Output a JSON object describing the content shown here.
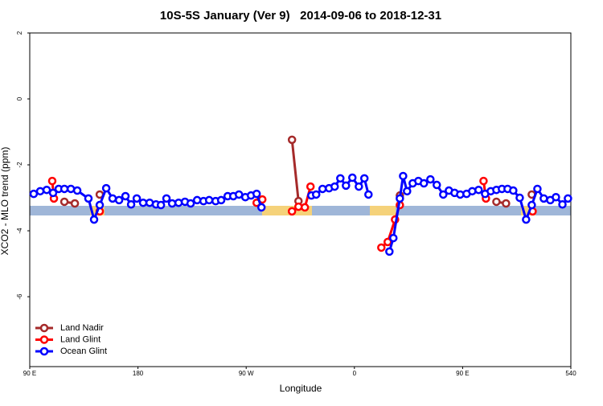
{
  "chart_data": {
    "type": "line",
    "title": "10S-5S January (Ver 9)   2014-09-06 to 2018-12-31",
    "x_label": "Longitude",
    "y_label": "XCO2 - MLO trend (ppm)",
    "xlim": [
      90,
      540
    ],
    "ylim": [
      -8.12,
      2
    ],
    "xticks": [
      {
        "value": 90,
        "label": "90 E"
      },
      180,
      {
        "value": 270,
        "label": "90 W"
      },
      {
        "value": 360,
        "label": "0"
      },
      {
        "value": 450,
        "label": "90 E"
      },
      540
    ],
    "yticks": [
      2,
      0,
      -2,
      -4,
      -6
    ],
    "legend": "bottom-left",
    "series": [
      {
        "name": "Land Nadir",
        "color": "#a52a2a",
        "x": [
          118.8,
          127.5,
          null,
          148.2,
          null,
          308.1,
          313.5,
          null,
          397.8,
          null,
          478.1,
          486.1,
          null,
          507.5
        ],
        "values": [
          -3.12,
          -3.17,
          null,
          -2.9,
          null,
          -1.24,
          -3.1,
          null,
          -2.93,
          null,
          -3.12,
          -3.17,
          null,
          -2.9
        ]
      },
      {
        "name": "Land Glint",
        "color": "#ff0000",
        "x": [
          108.7,
          110.1,
          null,
          148.2,
          null,
          278.7,
          283.4,
          null,
          308.1,
          313.5,
          318.8,
          323.5,
          null,
          382.4,
          387.7,
          393.8,
          397.8,
          null,
          467.4,
          469.4,
          null,
          508.2
        ],
        "values": [
          -2.49,
          -3.02,
          null,
          -3.41,
          null,
          -3.15,
          -3.05,
          null,
          -3.41,
          -3.27,
          -3.29,
          -2.66,
          null,
          -4.51,
          -4.34,
          -3.66,
          -3.22,
          null,
          -2.49,
          -3.02,
          null,
          -3.41
        ]
      },
      {
        "name": "Ocean Glint",
        "color": "#0000ff",
        "x": [
          93.3,
          98.7,
          104.1,
          109.4,
          114.1,
          118.8,
          124.2,
          129.5,
          138.8,
          143.5,
          148.2,
          153.6,
          158.9,
          164.3,
          169.6,
          174.3,
          179,
          184.3,
          189.7,
          195,
          199.1,
          203.7,
          208.4,
          213.8,
          219.1,
          223.8,
          229.2,
          234.5,
          239.2,
          244.6,
          249.2,
          254.6,
          259.3,
          264,
          269.3,
          274,
          278.7,
          282.7,
          null,
          324.2,
          328.2,
          333.5,
          338.9,
          343.6,
          348.3,
          353,
          358.3,
          363.7,
          368.3,
          371.7,
          null,
          389.1,
          392.4,
          397.8,
          400.5,
          403.8,
          408.5,
          413.2,
          417.8,
          423.2,
          428.5,
          433.9,
          438.6,
          443.3,
          448,
          453.3,
          458,
          463.3,
          468.7,
          473.4,
          478.1,
          482.7,
          487.4,
          492.1,
          497.5,
          502.8,
          507.5,
          512.2,
          517.5,
          522.9,
          527.6,
          533,
          537.6
        ],
        "values": [
          -2.88,
          -2.8,
          -2.76,
          -2.85,
          -2.73,
          -2.73,
          -2.73,
          -2.78,
          -3.02,
          -3.66,
          -3.22,
          -2.71,
          -3.02,
          -3.07,
          -2.95,
          -3.2,
          -3.02,
          -3.15,
          -3.15,
          -3.2,
          -3.22,
          -3.02,
          -3.17,
          -3.15,
          -3.12,
          -3.17,
          -3.07,
          -3.1,
          -3.07,
          -3.1,
          -3.07,
          -2.95,
          -2.95,
          -2.9,
          -2.98,
          -2.93,
          -2.88,
          -3.29,
          null,
          -2.93,
          -2.9,
          -2.73,
          -2.71,
          -2.66,
          -2.41,
          -2.63,
          -2.39,
          -2.66,
          -2.41,
          -2.9,
          null,
          -4.63,
          -4.22,
          -3.02,
          -2.34,
          -2.8,
          -2.56,
          -2.49,
          -2.56,
          -2.44,
          -2.61,
          -2.9,
          -2.78,
          -2.85,
          -2.9,
          -2.88,
          -2.8,
          -2.76,
          -2.88,
          -2.8,
          -2.76,
          -2.73,
          -2.73,
          -2.78,
          -3.0,
          -3.66,
          -3.22,
          -2.73,
          -3.02,
          -3.07,
          -2.98,
          -3.2,
          -3.02
        ]
      }
    ]
  }
}
